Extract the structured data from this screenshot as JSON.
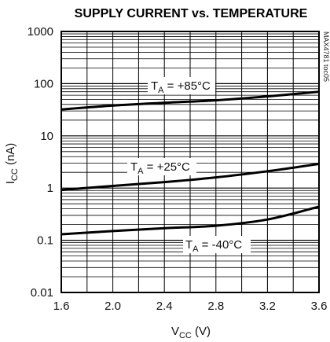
{
  "chart_data": {
    "type": "line",
    "title": "SUPPLY CURRENT vs. TEMPERATURE",
    "xlabel": "VCC (V)",
    "ylabel": "ICC (nA)",
    "x_scale": "linear",
    "y_scale": "log",
    "xlim": [
      1.6,
      3.6
    ],
    "ylim": [
      0.01,
      1000
    ],
    "x_ticks": [
      "1.6",
      "2.0",
      "2.4",
      "2.8",
      "3.2",
      "3.6"
    ],
    "y_ticks": [
      "0.01",
      "0.1",
      "1",
      "10",
      "100",
      "1000"
    ],
    "grid": true,
    "series": [
      {
        "name": "TA = +85°C",
        "x": [
          1.6,
          2.0,
          2.4,
          2.8,
          3.2,
          3.6
        ],
        "y": [
          32,
          38,
          43,
          48,
          57,
          70
        ]
      },
      {
        "name": "TA = +25°C",
        "x": [
          1.6,
          2.0,
          2.4,
          2.8,
          3.2,
          3.6
        ],
        "y": [
          0.92,
          1.1,
          1.3,
          1.6,
          2.1,
          2.9
        ]
      },
      {
        "name": "TA = -40°C",
        "x": [
          1.6,
          2.0,
          2.4,
          2.8,
          3.2,
          3.6
        ],
        "y": [
          0.13,
          0.15,
          0.17,
          0.19,
          0.25,
          0.44
        ]
      }
    ],
    "part_tag": "MAX4781 toc05"
  }
}
